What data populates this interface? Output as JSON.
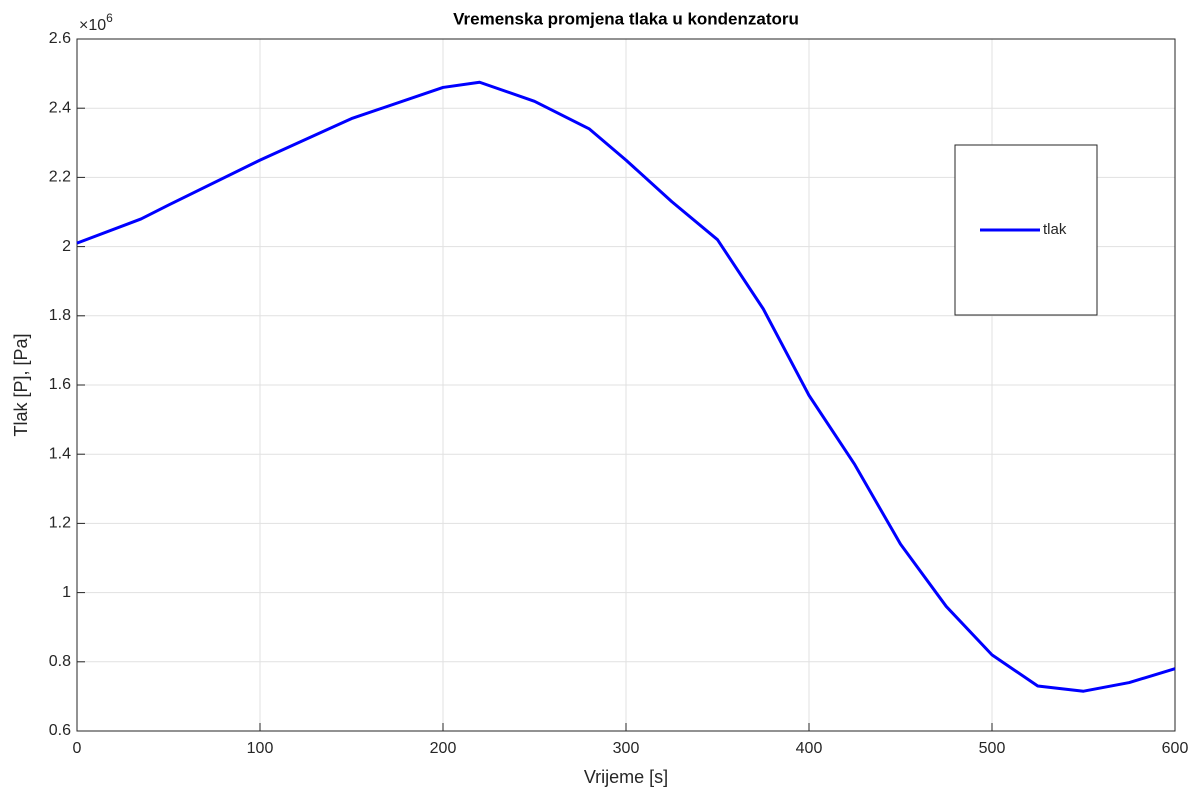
{
  "chart_data": {
    "type": "line",
    "title": "Vremenska promjena tlaka u kondenzatoru",
    "x_label": "Vrijeme [s]",
    "y_label": "Tlak [P], [Pa]",
    "y_multiplier": {
      "base": "×10",
      "exponent": "6"
    },
    "x": [
      0,
      35,
      50,
      100,
      150,
      200,
      220,
      250,
      280,
      300,
      325,
      350,
      375,
      400,
      425,
      450,
      475,
      500,
      525,
      550,
      575,
      600
    ],
    "series": [
      {
        "name": "tlak",
        "color": "#0000ff",
        "values": [
          2.01,
          2.08,
          2.12,
          2.25,
          2.37,
          2.46,
          2.475,
          2.42,
          2.34,
          2.25,
          2.13,
          2.02,
          1.82,
          1.57,
          1.37,
          1.14,
          0.96,
          0.82,
          0.73,
          0.715,
          0.74,
          0.78
        ]
      }
    ],
    "xlim": [
      0,
      600
    ],
    "xticks": [
      0,
      100,
      200,
      300,
      400,
      500,
      600
    ],
    "ylim": [
      0.6,
      2.6
    ],
    "yticks": [
      0.6,
      0.8,
      1,
      1.2,
      1.4,
      1.6,
      1.8,
      2,
      2.2,
      2.4,
      2.6
    ],
    "grid": true,
    "legend": "east"
  }
}
